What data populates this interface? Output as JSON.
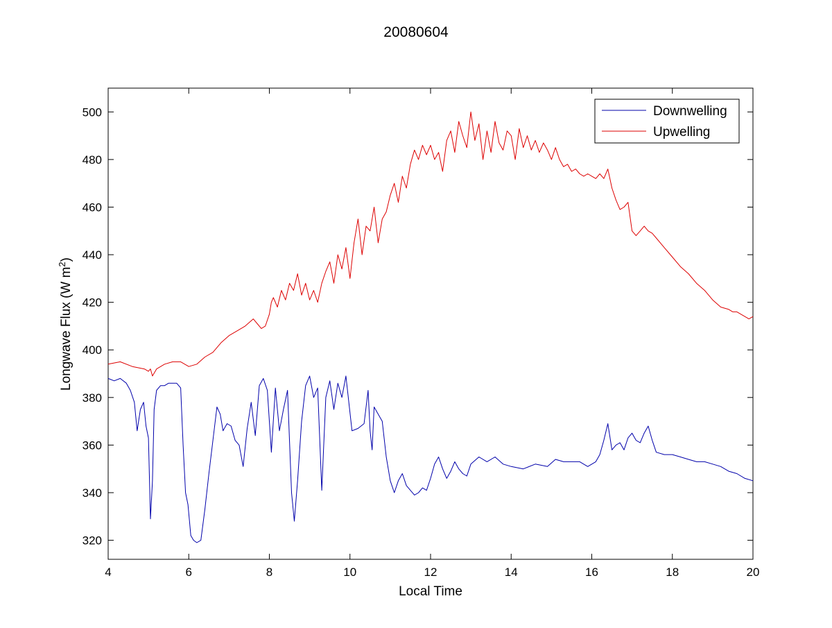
{
  "chart_data": {
    "type": "line",
    "title": "20080604",
    "xlabel": "Local Time",
    "ylabel": "Longwave Flux (W m",
    "ylabel_sup": "2",
    "ylabel_close": ")",
    "xlim": [
      4,
      20
    ],
    "ylim": [
      312,
      510
    ],
    "xticks": [
      4,
      6,
      8,
      10,
      12,
      14,
      16,
      18,
      20
    ],
    "yticks": [
      320,
      340,
      360,
      380,
      400,
      420,
      440,
      460,
      480,
      500
    ],
    "grid": false,
    "legend_position": "top-right",
    "series": [
      {
        "name": "Downwelling",
        "color": "#0000aa",
        "x": [
          4.0,
          4.15,
          4.3,
          4.45,
          4.55,
          4.65,
          4.72,
          4.8,
          4.88,
          4.94,
          5.0,
          5.05,
          5.1,
          5.14,
          5.2,
          5.3,
          5.4,
          5.5,
          5.6,
          5.7,
          5.8,
          5.86,
          5.92,
          5.98,
          6.05,
          6.12,
          6.2,
          6.3,
          6.4,
          6.5,
          6.6,
          6.7,
          6.78,
          6.85,
          6.95,
          7.05,
          7.15,
          7.25,
          7.35,
          7.45,
          7.55,
          7.65,
          7.75,
          7.85,
          7.95,
          8.05,
          8.15,
          8.25,
          8.35,
          8.45,
          8.55,
          8.62,
          8.7,
          8.8,
          8.9,
          9.0,
          9.1,
          9.2,
          9.3,
          9.4,
          9.5,
          9.6,
          9.7,
          9.8,
          9.9,
          10.05,
          10.2,
          10.35,
          10.45,
          10.5,
          10.55,
          10.6,
          10.7,
          10.8,
          10.9,
          11.0,
          11.1,
          11.2,
          11.3,
          11.4,
          11.5,
          11.6,
          11.7,
          11.8,
          11.9,
          12.0,
          12.1,
          12.2,
          12.3,
          12.4,
          12.5,
          12.6,
          12.7,
          12.8,
          12.9,
          13.0,
          13.2,
          13.4,
          13.6,
          13.8,
          14.0,
          14.3,
          14.6,
          14.9,
          15.1,
          15.3,
          15.5,
          15.7,
          15.9,
          16.1,
          16.2,
          16.3,
          16.4,
          16.5,
          16.6,
          16.7,
          16.8,
          16.9,
          17.0,
          17.1,
          17.2,
          17.3,
          17.4,
          17.5,
          17.6,
          17.8,
          18.0,
          18.2,
          18.4,
          18.6,
          18.8,
          19.0,
          19.2,
          19.4,
          19.6,
          19.8,
          20.0
        ],
        "y": [
          388,
          387,
          388,
          386,
          383,
          378,
          366,
          375,
          378,
          368,
          363,
          329,
          345,
          375,
          383,
          385,
          385,
          386,
          386,
          386,
          384,
          360,
          340,
          335,
          322,
          320,
          319,
          320,
          333,
          348,
          362,
          376,
          373,
          366,
          369,
          368,
          362,
          360,
          351,
          367,
          378,
          364,
          385,
          388,
          383,
          357,
          384,
          366,
          375,
          383,
          340,
          328,
          345,
          370,
          385,
          389,
          380,
          384,
          341,
          380,
          387,
          375,
          386,
          380,
          389,
          366,
          367,
          369,
          383,
          366,
          358,
          376,
          373,
          370,
          355,
          345,
          340,
          345,
          348,
          343,
          341,
          339,
          340,
          342,
          341,
          346,
          352,
          355,
          350,
          346,
          349,
          353,
          350,
          348,
          347,
          352,
          355,
          353,
          355,
          352,
          351,
          350,
          352,
          351,
          354,
          353,
          353,
          353,
          351,
          353,
          356,
          362,
          369,
          358,
          360,
          361,
          358,
          363,
          365,
          362,
          361,
          365,
          368,
          362,
          357,
          356,
          356,
          355,
          354,
          353,
          353,
          352,
          351,
          349,
          348,
          346,
          345
        ]
      },
      {
        "name": "Upwelling",
        "color": "#dd0000",
        "x": [
          4.0,
          4.3,
          4.6,
          4.9,
          5.0,
          5.05,
          5.1,
          5.2,
          5.4,
          5.6,
          5.8,
          6.0,
          6.2,
          6.4,
          6.6,
          6.8,
          7.0,
          7.2,
          7.4,
          7.6,
          7.7,
          7.8,
          7.9,
          8.0,
          8.05,
          8.1,
          8.2,
          8.3,
          8.4,
          8.5,
          8.6,
          8.7,
          8.8,
          8.9,
          9.0,
          9.1,
          9.2,
          9.3,
          9.4,
          9.5,
          9.6,
          9.7,
          9.8,
          9.9,
          10.0,
          10.1,
          10.2,
          10.3,
          10.4,
          10.5,
          10.6,
          10.7,
          10.8,
          10.9,
          11.0,
          11.1,
          11.2,
          11.3,
          11.4,
          11.5,
          11.6,
          11.7,
          11.8,
          11.9,
          12.0,
          12.1,
          12.2,
          12.3,
          12.4,
          12.5,
          12.6,
          12.7,
          12.8,
          12.9,
          13.0,
          13.1,
          13.2,
          13.3,
          13.4,
          13.5,
          13.6,
          13.7,
          13.8,
          13.9,
          14.0,
          14.1,
          14.2,
          14.3,
          14.4,
          14.5,
          14.6,
          14.7,
          14.8,
          14.9,
          15.0,
          15.1,
          15.2,
          15.3,
          15.4,
          15.5,
          15.6,
          15.7,
          15.8,
          15.9,
          16.0,
          16.1,
          16.2,
          16.3,
          16.4,
          16.5,
          16.6,
          16.7,
          16.8,
          16.9,
          17.0,
          17.1,
          17.2,
          17.3,
          17.4,
          17.5,
          17.6,
          17.8,
          18.0,
          18.2,
          18.4,
          18.6,
          18.8,
          19.0,
          19.2,
          19.4,
          19.5,
          19.6,
          19.7,
          19.8,
          19.9,
          20.0
        ],
        "y": [
          394,
          395,
          393,
          392,
          391,
          392,
          389,
          392,
          394,
          395,
          395,
          393,
          394,
          397,
          399,
          403,
          406,
          408,
          410,
          413,
          411,
          409,
          410,
          415,
          420,
          422,
          418,
          425,
          421,
          428,
          425,
          432,
          423,
          428,
          421,
          425,
          420,
          428,
          433,
          437,
          428,
          440,
          434,
          443,
          430,
          445,
          455,
          440,
          452,
          450,
          460,
          445,
          455,
          458,
          465,
          470,
          462,
          473,
          468,
          478,
          484,
          480,
          486,
          482,
          486,
          480,
          483,
          475,
          488,
          492,
          483,
          496,
          490,
          485,
          500,
          488,
          495,
          480,
          492,
          483,
          496,
          487,
          484,
          492,
          490,
          480,
          493,
          485,
          490,
          484,
          488,
          483,
          487,
          484,
          480,
          485,
          480,
          477,
          478,
          475,
          476,
          474,
          473,
          474,
          473,
          472,
          474,
          472,
          476,
          468,
          463,
          459,
          460,
          462,
          450,
          448,
          450,
          452,
          450,
          449,
          447,
          443,
          439,
          435,
          432,
          428,
          425,
          421,
          418,
          417,
          416,
          416,
          415,
          414,
          413,
          414
        ]
      }
    ]
  }
}
